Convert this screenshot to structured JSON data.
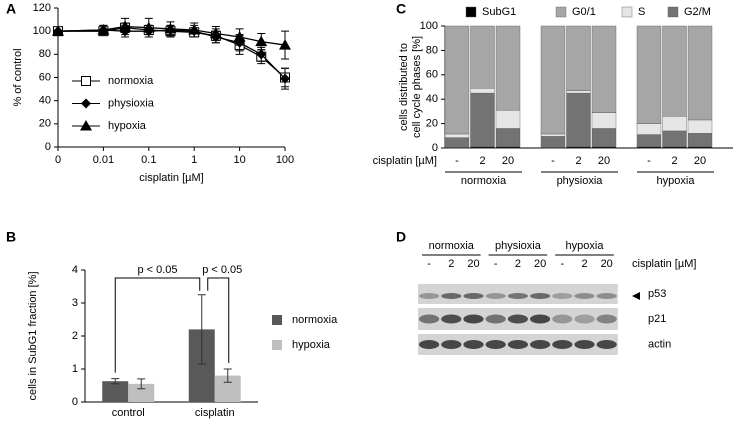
{
  "chart_data": [
    {
      "type": "line",
      "panel": "A",
      "ylabel": "% of control",
      "xlabel": "cisplatin [µM]",
      "x": [
        0,
        0.01,
        0.03,
        0.1,
        0.3,
        1,
        3,
        10,
        30,
        100
      ],
      "xlim": [
        0,
        100
      ],
      "xticks": [
        0,
        0.01,
        0.1,
        1,
        10,
        100
      ],
      "log_x": true,
      "ylim": [
        0,
        120
      ],
      "yticks": [
        0,
        20,
        40,
        60,
        80,
        100,
        120
      ],
      "grid": false,
      "legend": "lower-left",
      "series": [
        {
          "name": "normoxia",
          "color": "#000000",
          "marker": "open-square",
          "values": [
            100,
            100,
            103,
            101,
            100,
            99,
            96,
            88,
            78,
            60
          ],
          "errors": [
            0,
            3,
            4,
            4,
            5,
            4,
            6,
            8,
            6,
            8
          ]
        },
        {
          "name": "physioxia",
          "color": "#000000",
          "marker": "diamond",
          "values": [
            100,
            101,
            100,
            100,
            101,
            100,
            95,
            90,
            80,
            59
          ],
          "errors": [
            0,
            4,
            5,
            5,
            4,
            5,
            5,
            7,
            6,
            9
          ]
        },
        {
          "name": "hypoxia",
          "color": "#000000",
          "marker": "triangle",
          "values": [
            100,
            101,
            104,
            103,
            102,
            101,
            98,
            95,
            91,
            88
          ],
          "errors": [
            0,
            4,
            7,
            8,
            6,
            6,
            6,
            7,
            7,
            12
          ]
        }
      ]
    },
    {
      "type": "bar",
      "panel": "B",
      "ylabel": "cells in SubG1 fraction [%]",
      "categories": [
        "control",
        "cisplatin"
      ],
      "ylim": [
        0,
        4
      ],
      "yticks": [
        0,
        1,
        2,
        3,
        4
      ],
      "legend": "right",
      "series": [
        {
          "name": "normoxia",
          "color": "#595959",
          "values": [
            0.63,
            2.2
          ],
          "errors": [
            0.08,
            1.05
          ]
        },
        {
          "name": "hypoxia",
          "color": "#bfbfbf",
          "values": [
            0.55,
            0.8
          ],
          "errors": [
            0.15,
            0.2
          ]
        }
      ],
      "annotations": [
        "p < 0.05",
        "p < 0.05"
      ]
    },
    {
      "type": "stacked-bar",
      "panel": "C",
      "ylabel": [
        "cells distributed to",
        "cell cycle phases [%]"
      ],
      "xlabel": "cisplatin [µM]",
      "categories": [
        "-",
        "2",
        "20",
        "-",
        "2",
        "20",
        "-",
        "2",
        "20"
      ],
      "groups": [
        "normoxia",
        "physioxia",
        "hypoxia"
      ],
      "ylim": [
        0,
        100
      ],
      "yticks": [
        0,
        20,
        40,
        60,
        80,
        100
      ],
      "legend": "top",
      "series": [
        {
          "name": "SubG1",
          "color": "#000000",
          "values": [
            0.5,
            1,
            1,
            0.5,
            1,
            1,
            1,
            1,
            1
          ]
        },
        {
          "name": "G0/1",
          "color": "#a6a6a6",
          "values": [
            88.5,
            51,
            69,
            88.5,
            53,
            71,
            80,
            74,
            77
          ]
        },
        {
          "name": "S",
          "color": "#e6e6e6",
          "values": [
            3,
            4,
            15,
            2,
            2,
            13,
            9,
            12,
            11
          ]
        },
        {
          "name": "G2/M",
          "color": "#737373",
          "values": [
            8,
            44,
            15,
            9,
            44,
            15,
            10,
            13,
            11
          ]
        }
      ]
    }
  ],
  "blot": {
    "panel": "D",
    "groups": [
      "normoxia",
      "physioxia",
      "hypoxia"
    ],
    "lanes": [
      "-",
      "2",
      "20",
      "-",
      "2",
      "20",
      "-",
      "2",
      "20"
    ],
    "treatment": "cisplatin [µM]",
    "rows": [
      "p53",
      "p21",
      "actin"
    ]
  }
}
